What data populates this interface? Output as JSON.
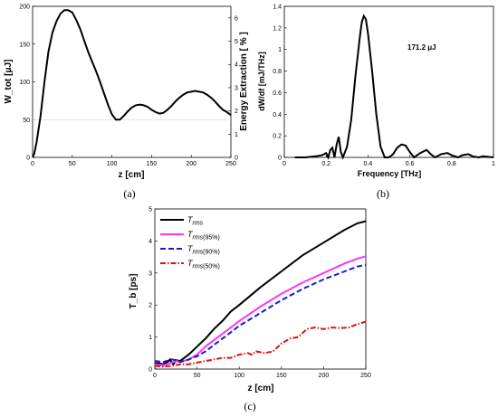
{
  "chart_data": [
    {
      "type": "line",
      "panel_caption": "(a)",
      "xlabel": "z [cm]",
      "ylabel": "W_tot [μJ]",
      "ylabel_right": "Energy Extraction [ % ]",
      "xlim": [
        0,
        250
      ],
      "ylim": [
        0,
        200
      ],
      "ylim_right": [
        0,
        6.5
      ],
      "x_ticks": [
        "0",
        "50",
        "100",
        "150",
        "200",
        "250"
      ],
      "y_ticks": [
        "0",
        "50",
        "100",
        "150",
        "200"
      ],
      "y_ticks_right": [
        "0",
        "1",
        "2",
        "3",
        "4",
        "5",
        "6"
      ],
      "grid": false,
      "series": [
        {
          "color": "#000000",
          "x": [
            0,
            2,
            5,
            10,
            15,
            20,
            25,
            30,
            35,
            40,
            45,
            50,
            55,
            60,
            65,
            70,
            75,
            80,
            85,
            90,
            95,
            100,
            105,
            110,
            115,
            120,
            125,
            130,
            135,
            140,
            145,
            150,
            155,
            160,
            165,
            170,
            175,
            180,
            185,
            190,
            195,
            200,
            205,
            210,
            215,
            220,
            225,
            230,
            235,
            240,
            245,
            250
          ],
          "y": [
            0,
            5,
            20,
            55,
            100,
            140,
            165,
            180,
            190,
            195,
            195,
            192,
            182,
            170,
            155,
            140,
            127,
            114,
            100,
            85,
            70,
            57,
            50,
            50,
            55,
            61,
            66,
            69,
            70,
            69,
            67,
            63,
            60,
            58,
            59,
            63,
            68,
            74,
            79,
            83,
            86,
            87,
            88,
            87,
            86,
            83,
            79,
            74,
            68,
            63,
            60,
            56
          ]
        }
      ]
    },
    {
      "type": "line",
      "panel_caption": "(b)",
      "xlabel": "Frequency [THz]",
      "ylabel": "dW/df [mJ/THz]",
      "xlim": [
        0,
        1
      ],
      "ylim": [
        0,
        1.4
      ],
      "x_ticks": [
        "0",
        "0.2",
        "0.4",
        "0.6",
        "0.8",
        "1"
      ],
      "y_ticks": [
        "0",
        "0.2",
        "0.4",
        "0.6",
        "0.8",
        "1",
        "1.2",
        "1.4"
      ],
      "annotation": "171.2 μJ",
      "grid": false,
      "series": [
        {
          "color": "#000000",
          "x": [
            0.05,
            0.1,
            0.15,
            0.18,
            0.2,
            0.21,
            0.22,
            0.23,
            0.24,
            0.25,
            0.26,
            0.27,
            0.28,
            0.3,
            0.32,
            0.34,
            0.36,
            0.37,
            0.38,
            0.39,
            0.4,
            0.42,
            0.44,
            0.46,
            0.48,
            0.5,
            0.52,
            0.54,
            0.56,
            0.58,
            0.6,
            0.62,
            0.65,
            0.68,
            0.7,
            0.72,
            0.75,
            0.78,
            0.8,
            0.83,
            0.85,
            0.88,
            0.9,
            0.93,
            0.95,
            1.0
          ],
          "y": [
            0.0,
            0.0,
            0.01,
            0.02,
            0.04,
            0.0,
            0.07,
            0.09,
            0.0,
            0.12,
            0.19,
            0.05,
            0.0,
            0.1,
            0.35,
            0.75,
            1.1,
            1.25,
            1.31,
            1.28,
            1.15,
            0.8,
            0.4,
            0.1,
            0.0,
            0.0,
            0.03,
            0.09,
            0.12,
            0.11,
            0.05,
            0.0,
            0.04,
            0.07,
            0.03,
            0.0,
            0.03,
            0.04,
            0.02,
            0.0,
            0.02,
            0.03,
            0.01,
            0.0,
            0.01,
            0.0
          ]
        }
      ]
    },
    {
      "type": "line",
      "panel_caption": "(c)",
      "xlabel": "z [cm]",
      "ylabel": "T_b [ps]",
      "xlim": [
        0,
        250
      ],
      "ylim": [
        0,
        5
      ],
      "x_ticks": [
        "0",
        "50",
        "100",
        "150",
        "200",
        "250"
      ],
      "y_ticks": [
        "0",
        "1",
        "2",
        "3",
        "4",
        "5"
      ],
      "legend_position": "top-left",
      "grid": false,
      "series": [
        {
          "name": "T_rms",
          "name_main": "T",
          "name_sub": "rms",
          "name_suffix": "",
          "color": "#000000",
          "dash": "",
          "x": [
            0,
            5,
            10,
            15,
            18,
            20,
            22,
            25,
            30,
            35,
            40,
            50,
            60,
            70,
            80,
            90,
            100,
            125,
            150,
            175,
            200,
            225,
            240,
            250
          ],
          "y": [
            0.18,
            0.18,
            0.15,
            0.22,
            0.3,
            0.2,
            0.15,
            0.28,
            0.25,
            0.35,
            0.45,
            0.7,
            0.95,
            1.25,
            1.5,
            1.8,
            2.0,
            2.55,
            3.05,
            3.55,
            3.95,
            4.35,
            4.55,
            4.62
          ]
        },
        {
          "name": "T_rms(95%)",
          "name_main": "T",
          "name_sub": "rms",
          "name_suffix": "(95%)",
          "color": "#ff33ff",
          "dash": "",
          "x": [
            0,
            10,
            20,
            25,
            30,
            40,
            50,
            60,
            70,
            80,
            90,
            100,
            125,
            150,
            175,
            200,
            225,
            240,
            250
          ],
          "y": [
            0.15,
            0.12,
            0.2,
            0.25,
            0.22,
            0.3,
            0.45,
            0.7,
            0.9,
            1.1,
            1.3,
            1.5,
            1.95,
            2.35,
            2.7,
            3.0,
            3.3,
            3.45,
            3.52
          ]
        },
        {
          "name": "T_rms(90%)",
          "name_main": "T",
          "name_sub": "rms",
          "name_suffix": "(90%)",
          "color": "#1a1acc",
          "dash": "6,3",
          "x": [
            0,
            10,
            20,
            25,
            30,
            40,
            50,
            60,
            70,
            80,
            90,
            100,
            125,
            150,
            175,
            200,
            225,
            240,
            250
          ],
          "y": [
            0.25,
            0.22,
            0.3,
            0.28,
            0.22,
            0.3,
            0.4,
            0.55,
            0.75,
            0.95,
            1.15,
            1.35,
            1.75,
            2.15,
            2.5,
            2.8,
            3.05,
            3.2,
            3.25
          ]
        },
        {
          "name": "T_rms(50%)",
          "name_main": "T",
          "name_sub": "rms",
          "name_suffix": "(50%)",
          "color": "#dd1111",
          "dash": "6,2,1.5,2",
          "x": [
            0,
            10,
            20,
            30,
            40,
            50,
            60,
            70,
            80,
            90,
            100,
            110,
            115,
            120,
            130,
            140,
            150,
            160,
            170,
            180,
            190,
            200,
            210,
            220,
            230,
            240,
            250
          ],
          "y": [
            0.1,
            0.08,
            0.1,
            0.15,
            0.15,
            0.2,
            0.25,
            0.3,
            0.35,
            0.35,
            0.45,
            0.5,
            0.45,
            0.55,
            0.5,
            0.55,
            0.8,
            0.95,
            1.0,
            1.25,
            1.3,
            1.25,
            1.3,
            1.28,
            1.3,
            1.4,
            1.48
          ]
        }
      ]
    }
  ]
}
